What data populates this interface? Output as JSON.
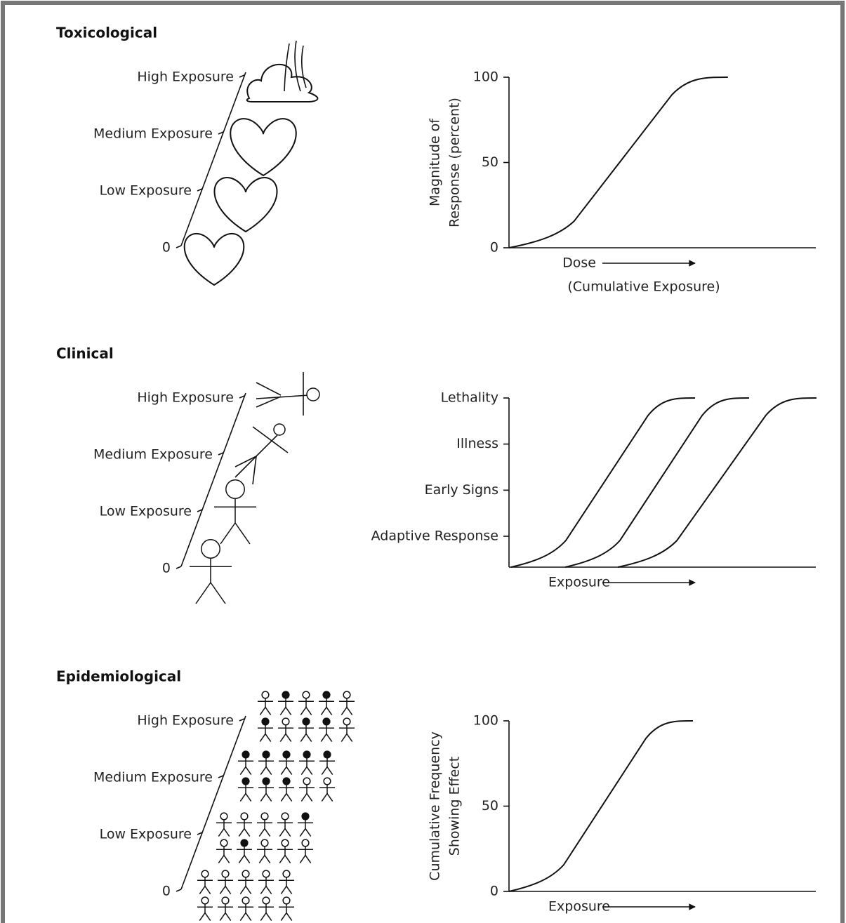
{
  "panels": [
    {
      "title": "Toxicological",
      "scale": [
        "High Exposure",
        "Medium Exposure",
        "Low Exposure",
        0
      ],
      "y_axis_label": [
        "Magnitude of",
        "Response (percent)"
      ],
      "y_ticks": [
        100,
        50,
        0
      ],
      "x_axis_label": [
        "Dose",
        "(Cumulative Exposure)"
      ]
    },
    {
      "title": "Clinical",
      "scale": [
        "High Exposure",
        "Medium Exposure",
        "Low Exposure",
        0
      ],
      "y_ticks": [
        "Lethality",
        "Illness",
        "Early Signs",
        "Adaptive Response"
      ],
      "x_axis_label": [
        "Exposure"
      ]
    },
    {
      "title": "Epidemiological",
      "scale": [
        "High Exposure",
        "Medium Exposure",
        "Low Exposure",
        0
      ],
      "y_axis_label": [
        "Cumulative Frequency",
        "Showing Effect"
      ],
      "y_ticks": [
        100,
        50,
        0
      ],
      "x_axis_label": [
        "Exposure"
      ]
    }
  ]
}
